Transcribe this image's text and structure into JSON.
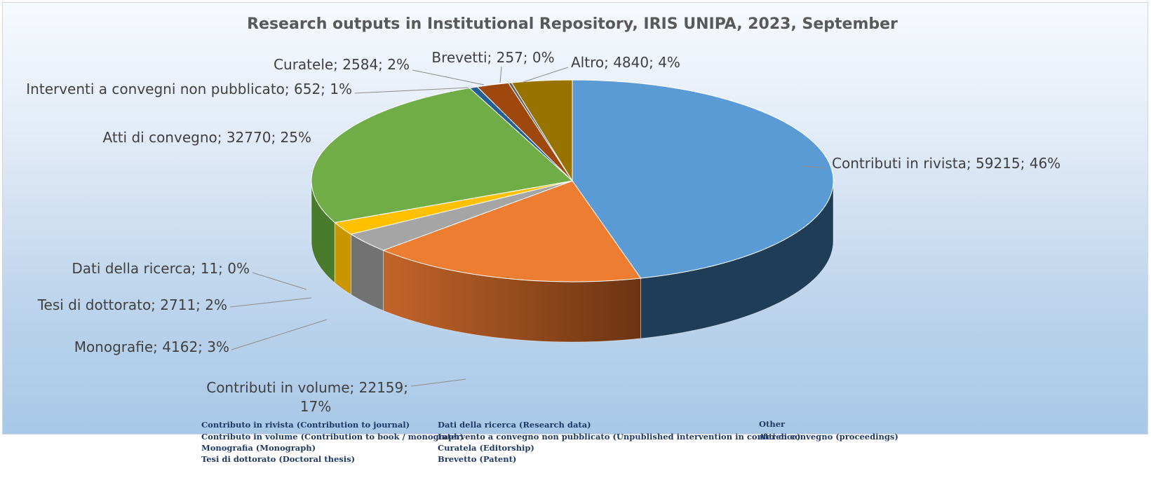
{
  "chart_data": {
    "type": "pie",
    "title": "Research outputs in Institutional Repository, IRIS UNIPA, 2023, September",
    "slices": [
      {
        "name": "Contributi in rivista",
        "value": 59215,
        "percent": "46%",
        "label": "Contributi in rivista; 59215; 46%",
        "color": "#5b9bd5",
        "side": "#203d57"
      },
      {
        "name": "Contributi in volume",
        "value": 22159,
        "percent": "17%",
        "label_line1": "Contributi in volume; 22159;",
        "label_line2": "17%",
        "color": "#ed7d31",
        "side": "#9a4716"
      },
      {
        "name": "Monografie",
        "value": 4162,
        "percent": "3%",
        "label": "Monografie; 4162; 3%",
        "color": "#a5a5a5",
        "side": "#727272"
      },
      {
        "name": "Tesi di dottorato",
        "value": 2711,
        "percent": "2%",
        "label": "Tesi di dottorato; 2711; 2%",
        "color": "#ffc000",
        "side": "#c99600"
      },
      {
        "name": "Dati della ricerca",
        "value": 11,
        "percent": "0%",
        "label": "Dati della ricerca; 11; 0%",
        "color": "#4472c4",
        "side": "#2c4a80"
      },
      {
        "name": "Atti di convegno",
        "value": 32770,
        "percent": "25%",
        "label": "Atti di convegno; 32770; 25%",
        "color": "#70ad47",
        "side": "#4a7a2c"
      },
      {
        "name": "Interventi a convegni non pubblicato",
        "value": 652,
        "percent": "1%",
        "label": "Interventi a convegni non pubblicato; 652; 1%",
        "color": "#255e91",
        "side": "#163a5a"
      },
      {
        "name": "Curatele",
        "value": 2584,
        "percent": "2%",
        "label": "Curatele; 2584; 2%",
        "color": "#9e480e",
        "side": "#6a3009"
      },
      {
        "name": "Brevetti",
        "value": 257,
        "percent": "0%",
        "label": "Brevetti; 257; 0%",
        "color": "#636363",
        "side": "#3f3f3f"
      },
      {
        "name": "Altro",
        "value": 4840,
        "percent": "4%",
        "label": "Altro; 4840; 4%",
        "color": "#997300",
        "side": "#664d00"
      }
    ]
  },
  "legend": {
    "items": [
      "Contributo in rivista (Contribution to journal)",
      "Contributo in volume (Contribution to book / monograph)",
      "Monografia (Monograph)",
      "Tesi di dottorato (Doctoral thesis)",
      "Dati della ricerca (Research data)",
      "Intervento a convegno non pubblicato (Unpublished intervention in conference)",
      "Curatela (Editorship)",
      "Brevetto (Patent)",
      "Other",
      "Atti di convegno (proceedings)"
    ]
  }
}
